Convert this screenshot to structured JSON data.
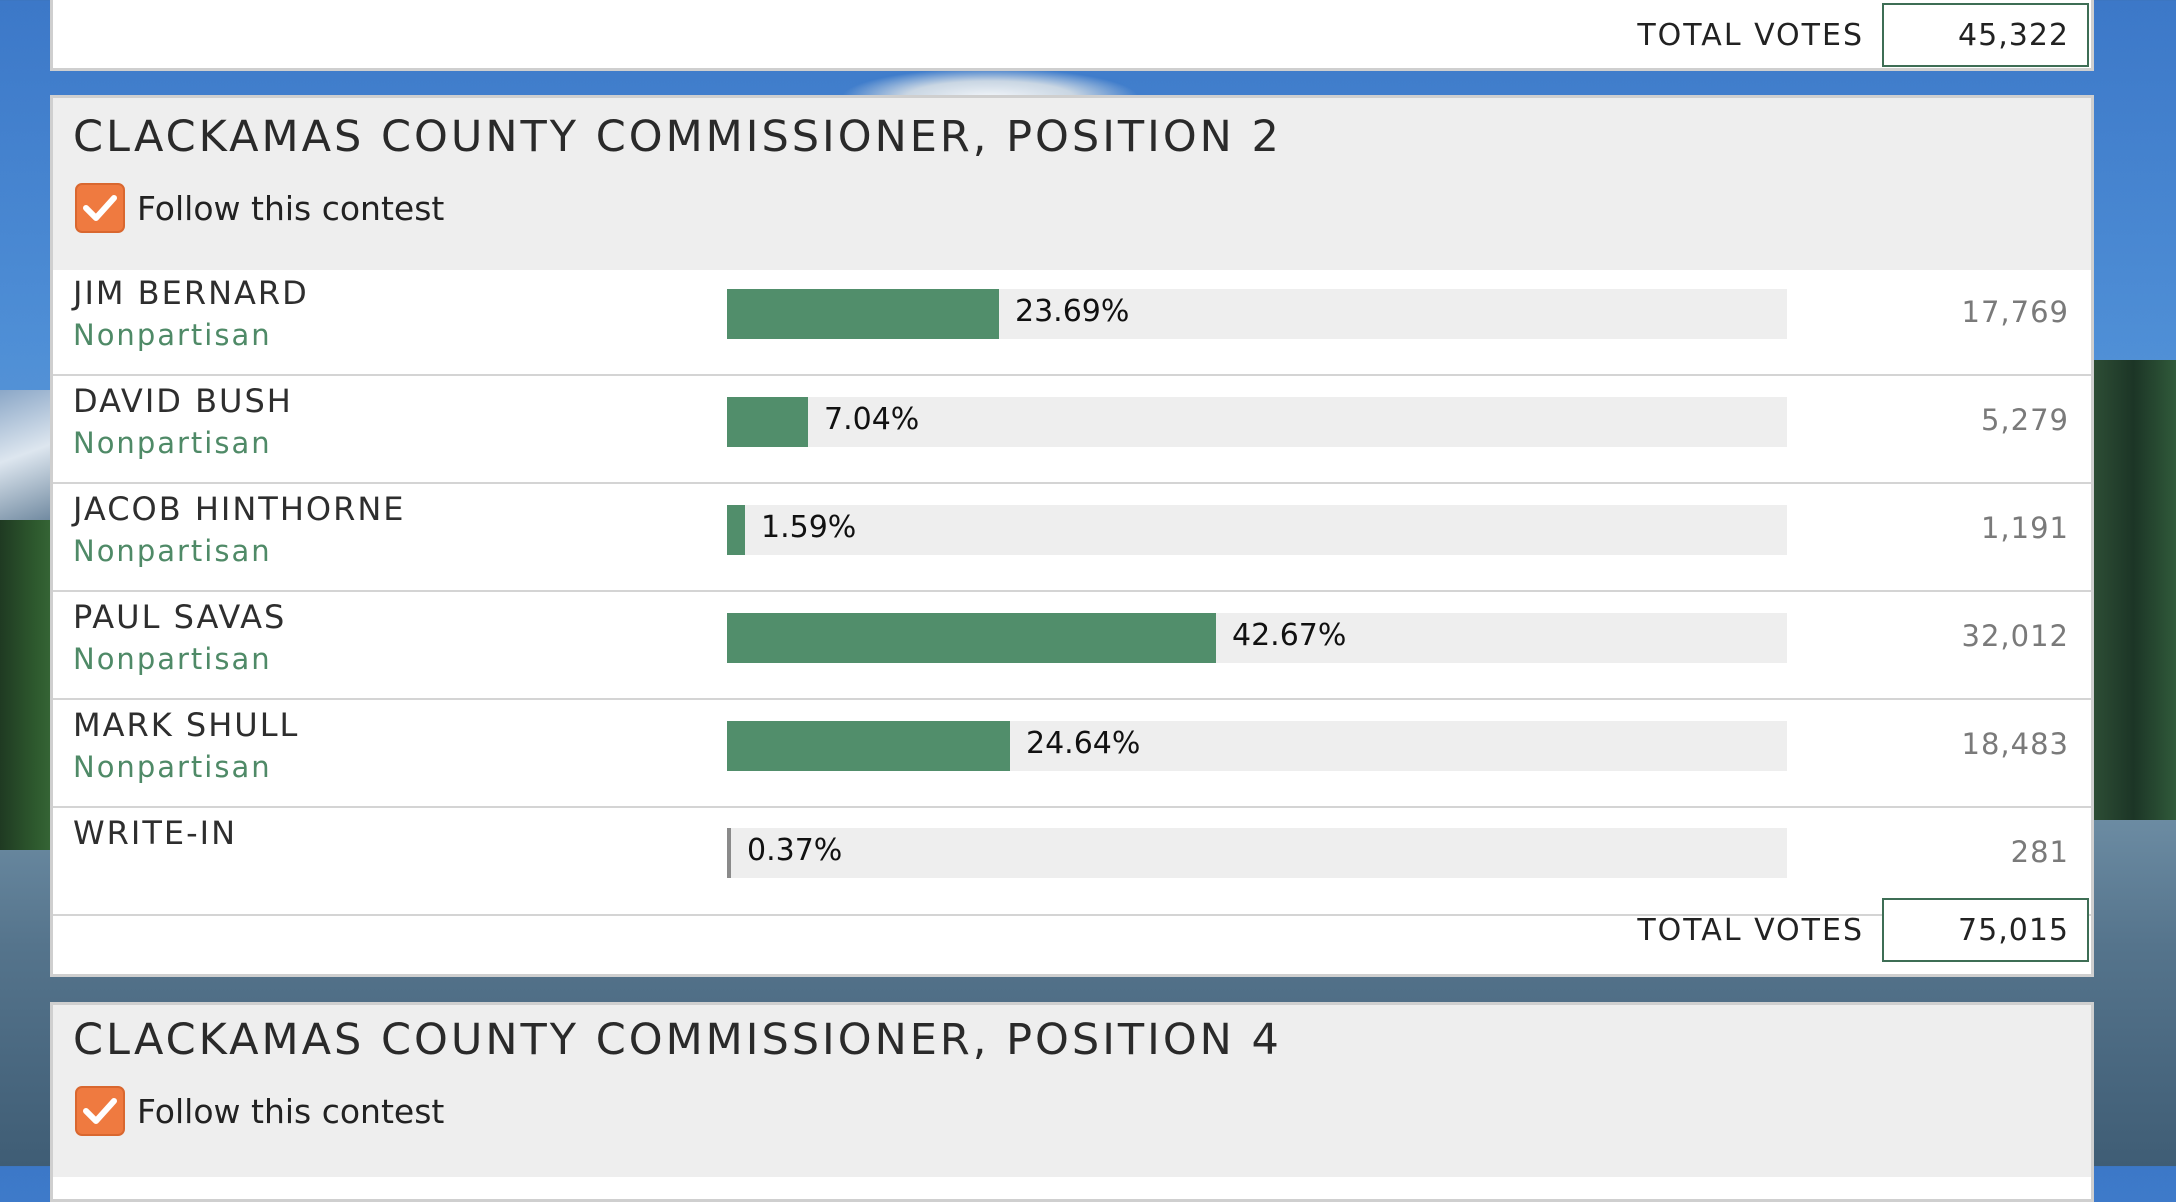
{
  "top_total": {
    "label": "TOTAL VOTES",
    "value": "45,322"
  },
  "contest1": {
    "title": "CLACKAMAS COUNTY COMMISSIONER, POSITION 2",
    "follow_label": "Follow this contest",
    "follow_checked": true,
    "candidates": [
      {
        "name": "JIM BERNARD",
        "party": "Nonpartisan",
        "pct": "23.69%",
        "pct_value": 23.69,
        "votes": "17,769"
      },
      {
        "name": "DAVID BUSH",
        "party": "Nonpartisan",
        "pct": "7.04%",
        "pct_value": 7.04,
        "votes": "5,279"
      },
      {
        "name": "JACOB HINTHORNE",
        "party": "Nonpartisan",
        "pct": "1.59%",
        "pct_value": 1.59,
        "votes": "1,191"
      },
      {
        "name": "PAUL SAVAS",
        "party": "Nonpartisan",
        "pct": "42.67%",
        "pct_value": 42.67,
        "votes": "32,012"
      },
      {
        "name": "MARK SHULL",
        "party": "Nonpartisan",
        "pct": "24.64%",
        "pct_value": 24.64,
        "votes": "18,483"
      },
      {
        "name": "WRITE-IN",
        "party": "",
        "pct": "0.37%",
        "pct_value": 0.37,
        "votes": "281"
      }
    ],
    "total_label": "TOTAL VOTES",
    "total_value": "75,015"
  },
  "contest2": {
    "title": "CLACKAMAS COUNTY COMMISSIONER, POSITION 4",
    "follow_label": "Follow this contest",
    "follow_checked": true
  },
  "colors": {
    "accent": "#ef7a40",
    "bar": "#518e6b",
    "party": "#4f8a67"
  }
}
